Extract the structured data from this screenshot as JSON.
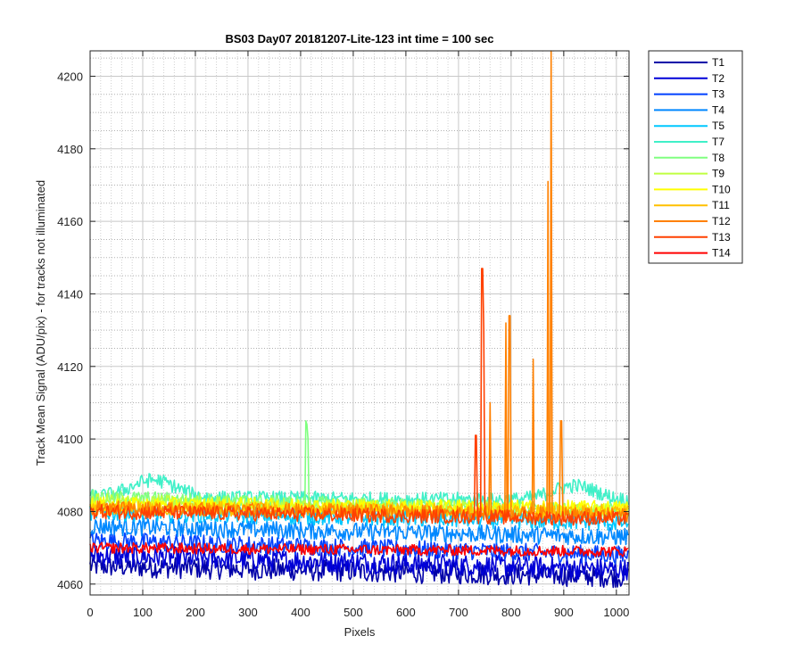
{
  "chart_data": {
    "type": "line",
    "title": "BS03 Day07 20181207-Lite-123 int time = 100 sec",
    "xlabel": "Pixels",
    "ylabel": "Track Mean Signal (ADU/pix) - for tracks not illuminated",
    "xlim": [
      0,
      1024
    ],
    "ylim": [
      4057,
      4207
    ],
    "xticks": [
      0,
      100,
      200,
      300,
      400,
      500,
      600,
      700,
      800,
      900,
      1000
    ],
    "yticks": [
      4060,
      4080,
      4100,
      4120,
      4140,
      4160,
      4180,
      4200
    ],
    "grid": "major and minor, dotted",
    "legend_position": "outside top-right",
    "series": [
      {
        "name": "T1",
        "color": "#0000a8",
        "baseline": 4065,
        "end": 4062,
        "noise": 3.0
      },
      {
        "name": "T2",
        "color": "#0000d8",
        "baseline": 4068,
        "end": 4064,
        "noise": 3.0
      },
      {
        "name": "T3",
        "color": "#0040ff",
        "baseline": 4072,
        "end": 4068,
        "noise": 2.5
      },
      {
        "name": "T4",
        "color": "#0088ff",
        "baseline": 4076,
        "end": 4073,
        "noise": 2.5
      },
      {
        "name": "T5",
        "color": "#00c8ff",
        "baseline": 4080,
        "end": 4077,
        "noise": 2.5
      },
      {
        "name": "T7",
        "color": "#40f0c8",
        "baseline": 4084,
        "end": 4083,
        "noise": 2.0,
        "hump": 4090
      },
      {
        "name": "T8",
        "color": "#80ff80",
        "baseline": 4084,
        "end": 4080,
        "noise": 2.0,
        "spikes": [
          [
            410,
            4105
          ],
          [
            412,
            4104
          ],
          [
            414,
            4100
          ]
        ]
      },
      {
        "name": "T9",
        "color": "#c0ff40",
        "baseline": 4083,
        "end": 4080,
        "noise": 2.0
      },
      {
        "name": "T10",
        "color": "#ffff00",
        "baseline": 4082,
        "end": 4081,
        "noise": 2.0
      },
      {
        "name": "T11",
        "color": "#ffc000",
        "baseline": 4081,
        "end": 4080,
        "noise": 2.0
      },
      {
        "name": "T12",
        "color": "#ff8000",
        "baseline": 4081,
        "end": 4079,
        "noise": 2.0,
        "spikes": [
          [
            760,
            4110
          ],
          [
            790,
            4132
          ],
          [
            797,
            4134
          ],
          [
            842,
            4122
          ],
          [
            870,
            4171
          ],
          [
            876,
            4207
          ],
          [
            895,
            4105
          ]
        ]
      },
      {
        "name": "T13",
        "color": "#ff4000",
        "baseline": 4080,
        "end": 4078,
        "noise": 2.0,
        "spikes": [
          [
            733,
            4101
          ],
          [
            745,
            4147
          ],
          [
            748,
            4130
          ]
        ]
      },
      {
        "name": "T14",
        "color": "#ff0000",
        "baseline": 4070,
        "end": 4069,
        "noise": 1.5
      }
    ]
  }
}
